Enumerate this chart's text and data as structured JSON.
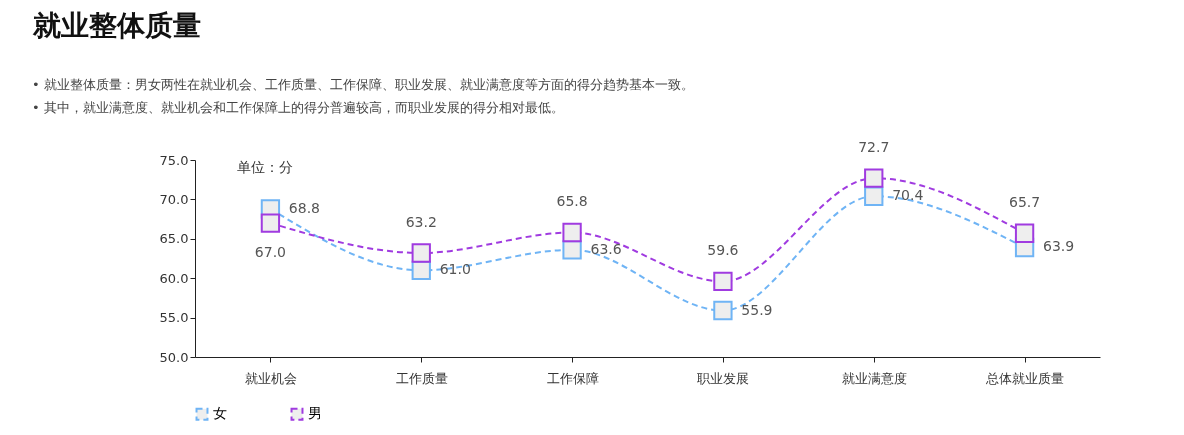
{
  "chart_data": {
    "type": "line",
    "title": "就业整体质量",
    "annotations": [
      "•   就业整体质量：男女两性在就业机会、工作质量、工作保障、职业发展、就业满意度等方面的得分趋势基本一致。",
      "•   其中，就业满意度、就业机会和工作保障上的得分普遍较高，而职业发展的得分相对最低。",
      "单位：分"
    ],
    "categories": [
      "就业机会",
      "工作质量",
      "工作保障",
      "职业发展",
      "就业满意度",
      "总体就业质量"
    ],
    "series": [
      {
        "name": "女",
        "color": "#6fb4f5",
        "values": [
          68.8,
          61.0,
          63.6,
          55.9,
          70.4,
          63.9
        ],
        "value_labels": [
          "68.8",
          "61.0",
          "63.6",
          "55.9",
          "70.4",
          "63.9"
        ]
      },
      {
        "name": "男",
        "color": "#a03be0",
        "values": [
          67.0,
          63.2,
          65.8,
          59.6,
          72.7,
          65.7
        ],
        "value_labels": [
          "67.0",
          "63.2",
          "65.8",
          "59.6",
          "72.7",
          "65.7"
        ]
      }
    ],
    "ylim": [
      50,
      75
    ],
    "yticks": [
      {
        "value": 50,
        "label": "50.0"
      },
      {
        "value": 55,
        "label": "55.0"
      },
      {
        "value": 60,
        "label": "60.0"
      },
      {
        "value": 65,
        "label": "65.0"
      },
      {
        "value": 70,
        "label": "70.0"
      },
      {
        "value": 75,
        "label": "75.0"
      }
    ],
    "data_labels": true,
    "marker": "square",
    "line_style": "dashed",
    "legend": "bottom",
    "grid": false
  }
}
